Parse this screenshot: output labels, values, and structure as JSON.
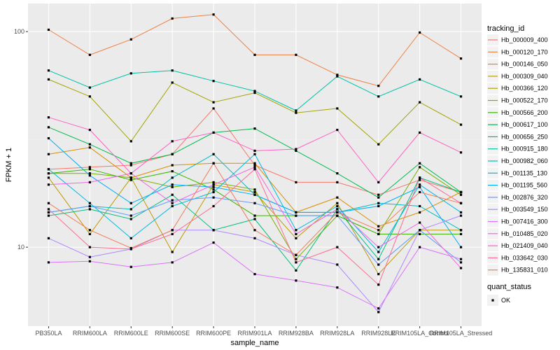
{
  "chart_data": {
    "type": "line",
    "xlabel": "sample_name",
    "ylabel": "FPKM + 1",
    "y_scale": "log10",
    "ylim": [
      4.3,
      135
    ],
    "y_ticks": [
      {
        "value": 10,
        "label": "10"
      },
      {
        "value": 100,
        "label": "100"
      }
    ],
    "categories": [
      "PB350LA",
      "RRIM600LA",
      "RRIM600LE",
      "RRIM600SE",
      "RRIM600PE",
      "RRIM901LA",
      "RRIM928BA",
      "RRIM928LA",
      "RRIM928LE",
      "RRIM105LA_Control",
      "RRIM105LA_Stressed"
    ],
    "category_labels": [
      "PB350LA",
      "RRIM600LA",
      "RRIM600LE",
      "RRIM600SE",
      "RRIM600PE",
      "RRIM901LA",
      "RRIM928BA",
      "RRIM928LA",
      "RRIM928LE",
      "RRIM105LA_Control",
      "RRIM105LA_Stressed"
    ],
    "grid": true,
    "legend": {
      "title": "tracking_id",
      "position": "right"
    },
    "series": [
      {
        "name": "Hb_000009_400",
        "color": "#F8766D",
        "values": [
          23,
          23.5,
          24,
          27,
          44,
          24,
          20,
          20,
          17.5,
          20.5,
          18
        ]
      },
      {
        "name": "Hb_000120_170",
        "color": "#EE8042",
        "values": [
          102,
          78,
          92,
          115,
          120,
          78,
          78,
          63,
          56,
          99,
          75
        ]
      },
      {
        "name": "Hb_000146_050",
        "color": "#DA8F00",
        "values": [
          27,
          29,
          21,
          24,
          24.5,
          24.5,
          14.5,
          17,
          12.5,
          14.5,
          18
        ]
      },
      {
        "name": "Hb_000309_040",
        "color": "#C09B00",
        "values": [
          21,
          11.5,
          21,
          9.5,
          19.5,
          18,
          11,
          16,
          7.5,
          12,
          12
        ]
      },
      {
        "name": "Hb_000366_120",
        "color": "#A3A500",
        "values": [
          60,
          50,
          31,
          58,
          47,
          52,
          42,
          44,
          30,
          47,
          37
        ]
      },
      {
        "name": "Hb_000522_170",
        "color": "#7CAE00",
        "values": [
          22,
          22,
          21,
          19,
          20,
          18.5,
          8.8,
          14,
          11.5,
          23.5,
          17.5
        ]
      },
      {
        "name": "Hb_000566_200",
        "color": "#39B600",
        "values": [
          22,
          23,
          20.5,
          22.5,
          18.5,
          14,
          14,
          14,
          11.5,
          11.5,
          11.5
        ]
      },
      {
        "name": "Hb_000617_100",
        "color": "#00BB4E",
        "values": [
          36,
          30,
          24.5,
          27,
          34,
          35.5,
          28,
          22,
          17,
          24.5,
          18
        ]
      },
      {
        "name": "Hb_000656_250",
        "color": "#00BF7D",
        "values": [
          14,
          15,
          13.5,
          17.5,
          12,
          13.5,
          7.8,
          15,
          8.8,
          21,
          18
        ]
      },
      {
        "name": "Hb_000915_180",
        "color": "#00C1A3",
        "values": [
          66,
          55,
          64,
          66,
          59,
          53,
          43,
          62,
          50,
          60,
          50
        ]
      },
      {
        "name": "Hb_000982_060",
        "color": "#00BFC4",
        "values": [
          14.5,
          15.5,
          15,
          21,
          27,
          17.5,
          14.5,
          14.5,
          16,
          15.5,
          12
        ]
      },
      {
        "name": "Hb_001135_130",
        "color": "#00B9E3",
        "values": [
          23,
          16,
          11,
          15.5,
          18,
          27,
          12,
          15.5,
          9.5,
          19.5,
          14.5
        ]
      },
      {
        "name": "Hb_001195_560",
        "color": "#00ADFA",
        "values": [
          32,
          21.5,
          16,
          19.5,
          19,
          17.5,
          14.5,
          14.5,
          15.5,
          19,
          10
        ]
      },
      {
        "name": "Hb_002876_320",
        "color": "#619CFF",
        "values": [
          14.5,
          15.5,
          14,
          16.5,
          17,
          16,
          14,
          14,
          8.3,
          12,
          8.5
        ]
      },
      {
        "name": "Hb_003549_150",
        "color": "#AE87FF",
        "values": [
          11,
          9,
          9.8,
          12,
          12,
          11,
          9.2,
          8.3,
          5,
          12,
          14
        ]
      },
      {
        "name": "Hb_007416_300",
        "color": "#DB72FB",
        "values": [
          8.5,
          8.6,
          8.1,
          8.5,
          10.5,
          7.5,
          7.0,
          6.5,
          5.2,
          10,
          8.8
        ]
      },
      {
        "name": "Hb_010485_020",
        "color": "#F564E3",
        "values": [
          19.5,
          20,
          22,
          16,
          19.5,
          23.5,
          11.5,
          15,
          10,
          13,
          8
        ]
      },
      {
        "name": "Hb_021409_040",
        "color": "#FF61C3",
        "values": [
          40,
          35,
          22,
          31,
          34,
          28,
          28.5,
          35,
          20,
          34,
          27.5
        ]
      },
      {
        "name": "Hb_033642_030",
        "color": "#FF6C91",
        "values": [
          15,
          10,
          9.8,
          11.5,
          15.5,
          23,
          8.5,
          10,
          6.7,
          21,
          16
        ]
      },
      {
        "name": "Hb_135831_010",
        "color": "#F37B59",
        "values": [
          16,
          12,
          9.9,
          12,
          24.5,
          12,
          9.2,
          14.5,
          12,
          18,
          16
        ]
      }
    ],
    "extra_legend": {
      "title": "quant_status",
      "entries": [
        "OK"
      ]
    }
  }
}
